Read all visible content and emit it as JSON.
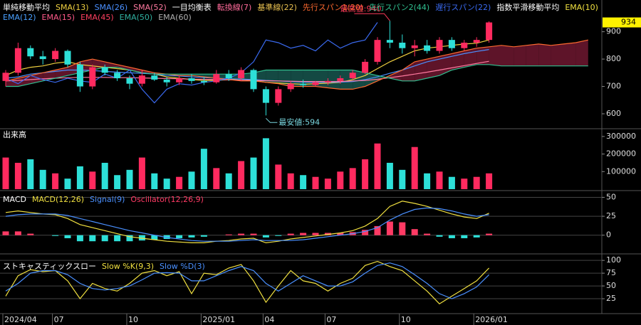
{
  "chart_data": [
    {
      "type": "candlestick",
      "open": [
        720,
        750,
        840,
        810,
        800,
        830,
        780,
        700,
        770,
        750,
        730,
        710,
        740,
        725,
        715,
        730,
        720,
        715,
        745,
        730,
        760,
        690,
        640,
        690,
        710,
        705,
        715,
        720,
        730,
        750,
        790,
        870,
        860,
        840,
        850,
        830,
        870,
        840,
        860,
        870
      ],
      "high": [
        760,
        860,
        850,
        830,
        840,
        835,
        790,
        780,
        780,
        760,
        740,
        760,
        750,
        735,
        740,
        745,
        735,
        760,
        760,
        770,
        765,
        700,
        700,
        720,
        725,
        720,
        730,
        740,
        760,
        800,
        880,
        940,
        890,
        870,
        870,
        880,
        880,
        870,
        880,
        938
      ],
      "low": [
        700,
        740,
        800,
        780,
        790,
        770,
        680,
        690,
        740,
        720,
        690,
        700,
        720,
        700,
        705,
        710,
        705,
        710,
        720,
        720,
        680,
        594,
        630,
        680,
        695,
        700,
        705,
        710,
        725,
        745,
        780,
        840,
        820,
        810,
        820,
        820,
        830,
        830,
        845,
        860
      ],
      "close": [
        750,
        840,
        810,
        800,
        830,
        780,
        700,
        770,
        750,
        730,
        710,
        740,
        725,
        715,
        730,
        720,
        715,
        745,
        730,
        760,
        690,
        640,
        690,
        710,
        705,
        715,
        720,
        730,
        750,
        790,
        870,
        860,
        840,
        850,
        830,
        870,
        840,
        860,
        870,
        934
      ],
      "up_color": "#ff2a5f",
      "down_color": "#2de0d8",
      "ylim": [
        548,
        1016
      ],
      "yticks": [
        600,
        700,
        800,
        900
      ],
      "current_price": 934,
      "annotations": [
        {
          "text": "最高値:940",
          "color": "#ff3a5a"
        },
        {
          "text": "最安値:594",
          "color": "#7ad8e0"
        }
      ],
      "cloud_up_color": "#6e1830",
      "cloud_down_color": "#17564f",
      "legend": [
        {
          "label": "単純移動平均",
          "color": "#ffffff"
        },
        {
          "label": "SMA(13)",
          "color": "#f0d040",
          "values": [
            740,
            760,
            770,
            775,
            785,
            790,
            780,
            775,
            770,
            765,
            760,
            750,
            745,
            735,
            730,
            725,
            722,
            722,
            725,
            728,
            722,
            715,
            712,
            710,
            708,
            710,
            712,
            715,
            725,
            740,
            765,
            790,
            810,
            830,
            840,
            845,
            850,
            855,
            858,
            870
          ]
        },
        {
          "label": "SMA(26)",
          "color": "#4a90ff",
          "values": [
            730,
            735,
            745,
            750,
            755,
            760,
            760,
            758,
            755,
            752,
            750,
            748,
            745,
            740,
            738,
            735,
            732,
            730,
            728,
            727,
            725,
            722,
            720,
            718,
            716,
            715,
            715,
            716,
            718,
            725,
            735,
            748,
            760,
            775,
            790,
            800,
            810,
            820,
            828,
            835
          ]
        },
        {
          "label": "SMA(52)",
          "color": "#ff7aa0",
          "values": [
            720,
            722,
            725,
            728,
            730,
            732,
            733,
            733,
            733,
            732,
            732,
            731,
            730,
            729,
            728,
            727,
            726,
            725,
            724,
            723,
            722,
            721,
            720,
            719,
            718,
            718,
            718,
            718,
            720,
            722,
            726,
            732,
            738,
            745,
            752,
            760,
            768,
            776,
            784,
            792
          ]
        },
        {
          "label": "一目均衡表",
          "color": "#ffffff"
        },
        {
          "label": "転換線(7)",
          "color": "#ff6a9a"
        },
        {
          "label": "基準線(22)",
          "color": "#e8c050"
        },
        {
          "label": "先行スパン1(20)",
          "color": "#ff6a30",
          "role": "cloud-a",
          "values": [
            720,
            730,
            740,
            750,
            760,
            770,
            790,
            800,
            790,
            780,
            770,
            760,
            750,
            745,
            740,
            740,
            735,
            730,
            725,
            720,
            720,
            715,
            710,
            700,
            700,
            700,
            695,
            690,
            690,
            700,
            720,
            740,
            760,
            790,
            800,
            810,
            820,
            830,
            840,
            845,
            850,
            845,
            850,
            855,
            850,
            855,
            860,
            870
          ]
        },
        {
          "label": "先行スパン2(44)",
          "color": "#30c090",
          "role": "cloud-b",
          "values": [
            700,
            700,
            710,
            720,
            730,
            740,
            750,
            760,
            770,
            770,
            760,
            750,
            745,
            745,
            745,
            745,
            745,
            745,
            745,
            745,
            750,
            760,
            760,
            760,
            760,
            760,
            760,
            760,
            760,
            750,
            740,
            730,
            720,
            720,
            730,
            740,
            760,
            770,
            780,
            780,
            775,
            775,
            775,
            775,
            775,
            775,
            775,
            775
          ]
        },
        {
          "label": "遅行スパン(22)",
          "color": "#3a6af0",
          "values": [
            730,
            710,
            740,
            725,
            715,
            730,
            720,
            715,
            745,
            730,
            760,
            690,
            640,
            690,
            710,
            705,
            715,
            720,
            730,
            750,
            790,
            870,
            860,
            840,
            850,
            830,
            870,
            840,
            860,
            870,
            934,
            null,
            null,
            null,
            null,
            null,
            null,
            null,
            null,
            null
          ]
        },
        {
          "label": "指数平滑移動平均",
          "color": "#ffffff"
        },
        {
          "label": "EMA(10)",
          "color": "#f0e040"
        },
        {
          "label": "EMA(12)",
          "color": "#4aa0ff"
        },
        {
          "label": "EMA(15)",
          "color": "#ff5a8a"
        },
        {
          "label": "EMA(45)",
          "color": "#ff4060"
        },
        {
          "label": "EMA(50)",
          "color": "#30b0a0"
        },
        {
          "label": "EMA(60)",
          "color": "#b0b0b0"
        }
      ]
    },
    {
      "type": "bar",
      "title": "出来高",
      "values": [
        180000,
        150000,
        170000,
        110000,
        90000,
        60000,
        130000,
        100000,
        150000,
        80000,
        110000,
        180000,
        90000,
        60000,
        70000,
        100000,
        230000,
        120000,
        90000,
        160000,
        180000,
        290000,
        140000,
        90000,
        80000,
        70000,
        60000,
        100000,
        120000,
        170000,
        260000,
        150000,
        110000,
        240000,
        90000,
        100000,
        70000,
        60000,
        70000,
        90000
      ],
      "ylim": [
        0,
        336000
      ],
      "yticks": [
        100000,
        200000,
        300000
      ]
    },
    {
      "type": "macd",
      "ylim": [
        -20,
        57
      ],
      "yticks": [
        0,
        25,
        50
      ],
      "grid": true,
      "legend": [
        {
          "label": "MACD",
          "color": "#ffffff"
        },
        {
          "label": "MACD(12,26)",
          "color": "#f0e040",
          "values": [
            30,
            32,
            30,
            28,
            27,
            22,
            14,
            10,
            6,
            2,
            -2,
            -4,
            -6,
            -8,
            -9,
            -10,
            -10,
            -8,
            -7,
            -5,
            -4,
            -10,
            -8,
            -5,
            -3,
            -1,
            1,
            3,
            6,
            12,
            22,
            38,
            45,
            42,
            38,
            33,
            28,
            24,
            22,
            29
          ]
        },
        {
          "label": "Signal(9)",
          "color": "#4a90ff",
          "values": [
            25,
            27,
            28,
            28,
            28,
            26,
            22,
            18,
            14,
            10,
            6,
            3,
            0,
            -3,
            -5,
            -7,
            -8,
            -8,
            -8,
            -7,
            -6,
            -7,
            -7,
            -7,
            -6,
            -4,
            -2,
            0,
            2,
            5,
            10,
            20,
            28,
            34,
            36,
            35,
            32,
            28,
            25,
            27
          ]
        },
        {
          "label": "Oscillator(12,26,9)",
          "color": "#ff3a64",
          "negative_color": "#2de0d8",
          "kind": "bar",
          "values": [
            5,
            5,
            2,
            0,
            -1,
            -4,
            -8,
            -8,
            -8,
            -8,
            -8,
            -7,
            -6,
            -5,
            -4,
            -3,
            -2,
            0,
            1,
            2,
            2,
            -3,
            -1,
            2,
            3,
            3,
            3,
            3,
            4,
            7,
            12,
            18,
            17,
            8,
            2,
            -2,
            -4,
            -4,
            -3,
            2
          ]
        }
      ]
    },
    {
      "type": "stochastic",
      "ylim": [
        0,
        103
      ],
      "yticks": [
        25,
        50,
        75,
        100
      ],
      "grid": true,
      "categories": [
        "2024/04",
        null,
        null,
        null,
        "07",
        null,
        null,
        null,
        null,
        null,
        "10",
        null,
        null,
        null,
        null,
        null,
        "2025/01",
        null,
        null,
        null,
        null,
        "04",
        null,
        null,
        null,
        null,
        "07",
        null,
        null,
        null,
        null,
        null,
        "10",
        null,
        null,
        null,
        null,
        null,
        "2026/01",
        null
      ],
      "legend": [
        {
          "label": "ストキャスティックスロー",
          "color": "#ffffff"
        },
        {
          "label": "Slow %K(9,3)",
          "color": "#f0e040",
          "values": [
            30,
            70,
            82,
            78,
            80,
            60,
            25,
            55,
            45,
            40,
            55,
            75,
            80,
            70,
            78,
            35,
            75,
            72,
            85,
            92,
            60,
            18,
            50,
            80,
            60,
            55,
            40,
            55,
            65,
            90,
            98,
            88,
            80,
            60,
            40,
            15,
            30,
            45,
            60,
            85
          ]
        },
        {
          "label": "Slow %D(3)",
          "color": "#4a90ff",
          "values": [
            40,
            55,
            75,
            80,
            80,
            72,
            55,
            45,
            42,
            45,
            50,
            62,
            75,
            76,
            75,
            60,
            60,
            70,
            80,
            88,
            80,
            55,
            40,
            55,
            70,
            60,
            50,
            50,
            58,
            75,
            90,
            95,
            88,
            72,
            55,
            35,
            25,
            35,
            48,
            72
          ]
        }
      ]
    }
  ]
}
